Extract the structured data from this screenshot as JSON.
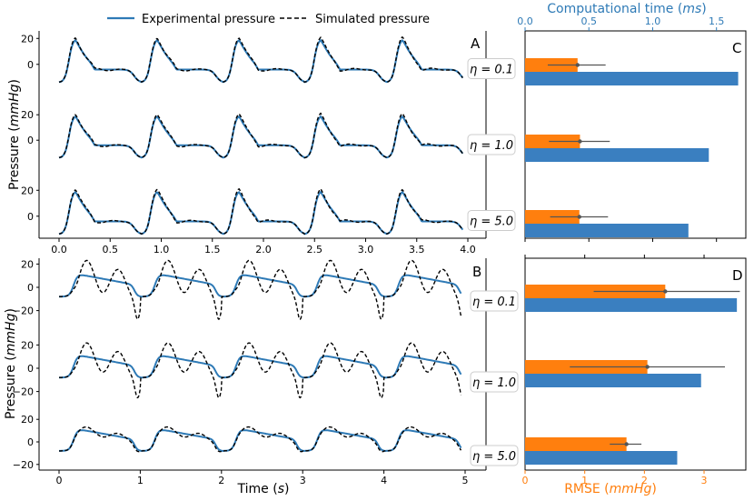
{
  "legend": {
    "experimental": "Experimental pressure",
    "simulated": "Simulated pressure",
    "experimental_color": "#2e7ab6",
    "simulated_color": "#000000"
  },
  "colors": {
    "bar_orange": "#ff7f0e",
    "bar_blue": "#3a7fc0",
    "axis_blue": "#2e7ab6",
    "axis_orange": "#ff7f0e",
    "error_bar": "#555555"
  },
  "axes": {
    "ylabel_top": "Pressure (mmHg)",
    "ylabel_bottom": "Pressure (mmHg)",
    "xlabel_bottom": "Time (s)",
    "top_axis_label": "Computational time (ms)",
    "bottom_axis_label": "RMSE (mmHg)"
  },
  "panels": {
    "A": "A",
    "B": "B",
    "C": "C",
    "D": "D"
  },
  "eta_labels": [
    "η = 0.1",
    "η = 1.0",
    "η = 5.0"
  ],
  "chart_data": [
    {
      "type": "line",
      "panel": "A",
      "x_range": [
        0,
        4.0
      ],
      "x_ticks": [
        "0.0",
        "0.5",
        "1.0",
        "1.5",
        "2.0",
        "2.5",
        "3.0",
        "3.5",
        "4.0"
      ],
      "y_ticks": [
        "20",
        "0"
      ],
      "ylim": [
        -17,
        23
      ],
      "beat_period": 0.8,
      "rows": [
        {
          "eta": "η = 0.1"
        },
        {
          "eta": "η = 1.0"
        },
        {
          "eta": "η = 5.0"
        }
      ]
    },
    {
      "type": "line",
      "panel": "B",
      "x_range": [
        0,
        5
      ],
      "x_ticks": [
        "0",
        "1",
        "2",
        "3",
        "4",
        "5"
      ],
      "y_ticks": [
        "20",
        "0",
        "−20"
      ],
      "ylim": [
        -25,
        25
      ],
      "beat_period": 1.0,
      "rows": [
        {
          "eta": "η = 0.1"
        },
        {
          "eta": "η = 1.0"
        },
        {
          "eta": "η = 5.0"
        }
      ]
    },
    {
      "type": "bar",
      "panel": "C",
      "top_axis": {
        "label": "Computational time (ms)",
        "ticks": [
          0.0,
          0.5,
          1.0,
          1.5
        ],
        "range": [
          0,
          1.73
        ]
      },
      "bars": [
        {
          "eta": "η = 0.1",
          "rmse": 0.88,
          "rmse_err_low": 0.38,
          "rmse_err_high": 1.35,
          "comp_time_ms": 1.67
        },
        {
          "eta": "η = 1.0",
          "rmse": 0.92,
          "rmse_err_low": 0.4,
          "rmse_err_high": 1.42,
          "comp_time_ms": 1.44
        },
        {
          "eta": "η = 5.0",
          "rmse": 0.91,
          "rmse_err_low": 0.42,
          "rmse_err_high": 1.39,
          "comp_time_ms": 1.28
        }
      ]
    },
    {
      "type": "bar",
      "panel": "D",
      "bottom_axis": {
        "label": "RMSE (mmHg)",
        "ticks": [
          0,
          1,
          2,
          3
        ],
        "range": [
          0,
          3.7
        ]
      },
      "bars": [
        {
          "eta": "η = 0.1",
          "rmse": 2.35,
          "rmse_err_low": 1.15,
          "rmse_err_high": 3.6,
          "comp_time_ms": 3.55
        },
        {
          "eta": "η = 1.0",
          "rmse": 2.05,
          "rmse_err_low": 0.75,
          "rmse_err_high": 3.35,
          "comp_time_ms": 2.95
        },
        {
          "eta": "η = 5.0",
          "rmse": 1.7,
          "rmse_err_low": 1.42,
          "rmse_err_high": 1.95,
          "comp_time_ms": 2.55
        }
      ]
    }
  ]
}
